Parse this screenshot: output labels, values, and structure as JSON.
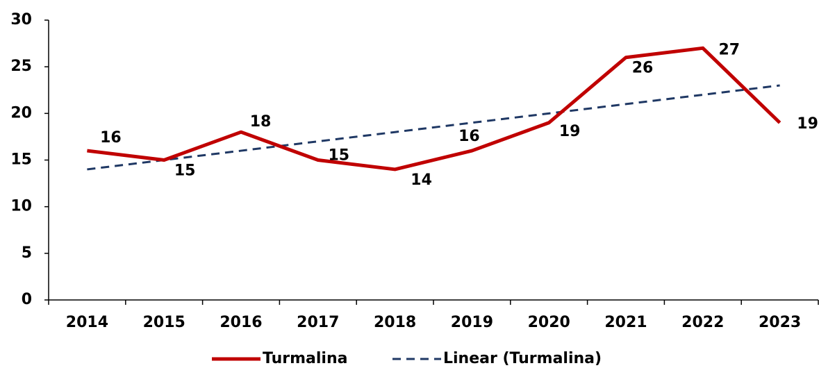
{
  "chart_data": {
    "type": "line",
    "categories": [
      "2014",
      "2015",
      "2016",
      "2017",
      "2018",
      "2019",
      "2020",
      "2021",
      "2022",
      "2023"
    ],
    "series": [
      {
        "name": "Turmalina",
        "color": "#c00000",
        "values": [
          16,
          15,
          18,
          15,
          14,
          16,
          19,
          26,
          27,
          19
        ],
        "data_labels": true
      },
      {
        "name": "Linear (Turmalina)",
        "color": "#1f3864",
        "dashed": true,
        "values": [
          14,
          15,
          16,
          17,
          18,
          19,
          20,
          21,
          22,
          23
        ]
      }
    ],
    "ylim": [
      0,
      30
    ],
    "yticks": [
      0,
      5,
      10,
      15,
      20,
      25,
      30
    ],
    "grid": false,
    "legend": "bottom"
  }
}
